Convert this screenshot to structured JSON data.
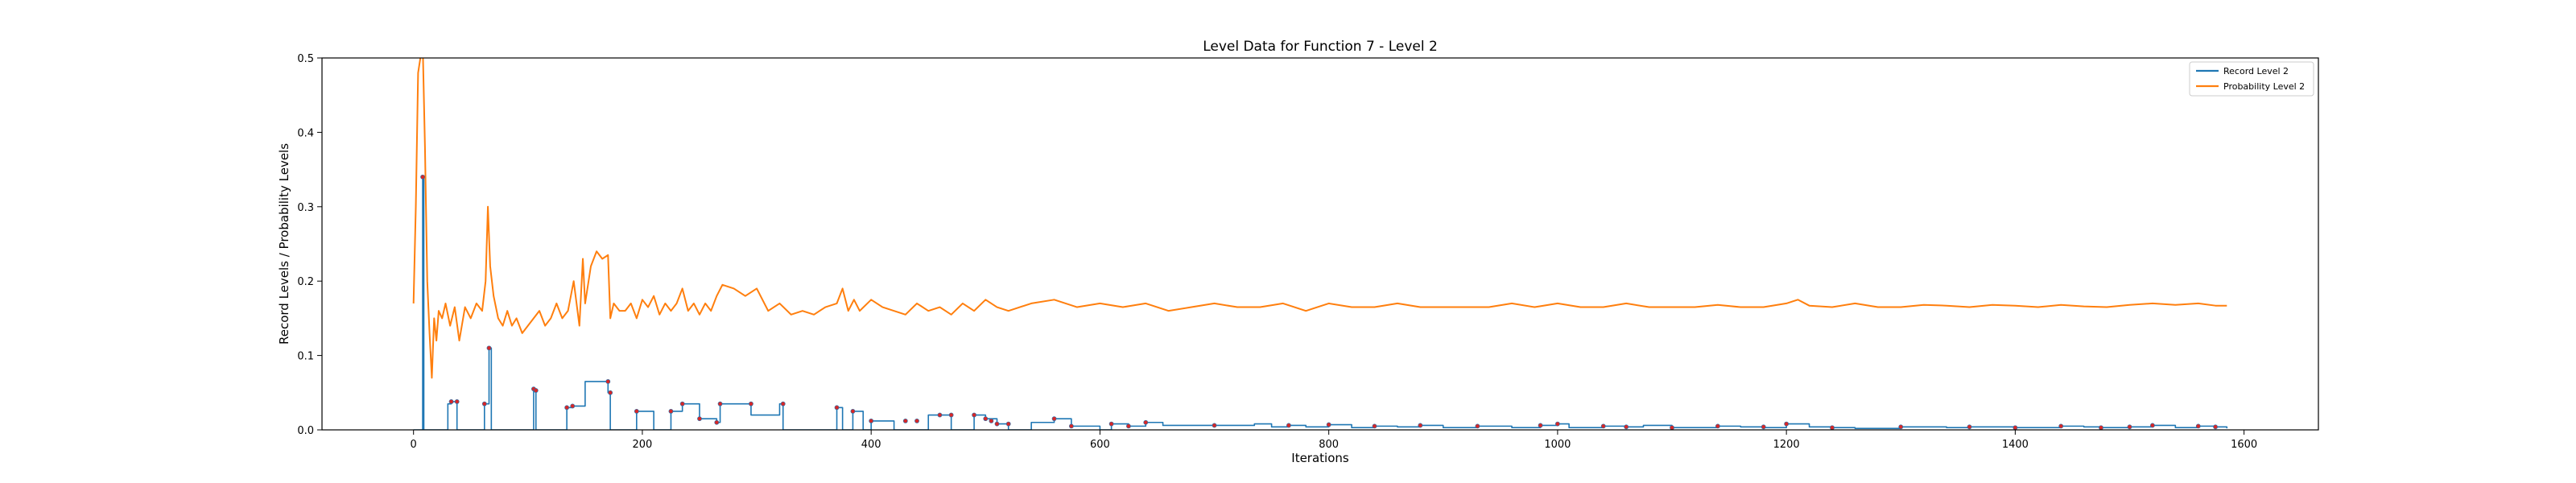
{
  "chart_data": {
    "type": "line",
    "title": "Level Data for Function 7 - Level 2",
    "xlabel": "Iterations",
    "ylabel": "Record Levels / Probability Levels",
    "xlim": [
      -80,
      1665
    ],
    "ylim": [
      0,
      0.5
    ],
    "xticks": [
      0,
      200,
      400,
      600,
      800,
      1000,
      1200,
      1400,
      1600
    ],
    "yticks": [
      0.0,
      0.1,
      0.2,
      0.3,
      0.4,
      0.5
    ],
    "xtick_labels": [
      "0",
      "200",
      "400",
      "600",
      "800",
      "1000",
      "1200",
      "1400",
      "1600"
    ],
    "ytick_labels": [
      "0.0",
      "0.1",
      "0.2",
      "0.3",
      "0.4",
      "0.5"
    ],
    "grid": false,
    "legend_position": "top-right",
    "colors": {
      "record": "#1f77b4",
      "probability": "#ff7f0e",
      "markers": "#d62728"
    },
    "series": [
      {
        "name": "Record Level 2",
        "style": "step",
        "x": [
          0,
          8,
          9,
          30,
          33,
          38,
          62,
          66,
          68,
          105,
          107,
          134,
          139,
          150,
          170,
          172,
          195,
          210,
          225,
          235,
          250,
          265,
          268,
          290,
          295,
          320,
          323,
          370,
          375,
          384,
          393,
          400,
          420,
          450,
          470,
          490,
          500,
          510,
          520,
          540,
          560,
          575,
          600,
          610,
          625,
          640,
          655,
          700,
          735,
          750,
          765,
          780,
          800,
          820,
          840,
          860,
          880,
          900,
          930,
          960,
          985,
          1000,
          1010,
          1040,
          1060,
          1075,
          1100,
          1140,
          1160,
          1180,
          1200,
          1220,
          1240,
          1260,
          1300,
          1340,
          1360,
          1400,
          1440,
          1460,
          1475,
          1500,
          1520,
          1540,
          1560,
          1575,
          1585
        ],
        "values": [
          0.0,
          0.34,
          0.0,
          0.035,
          0.038,
          0.0,
          0.035,
          0.11,
          0.0,
          0.055,
          0.0,
          0.03,
          0.032,
          0.065,
          0.05,
          0.0,
          0.025,
          0.0,
          0.025,
          0.035,
          0.015,
          0.01,
          0.035,
          0.035,
          0.02,
          0.035,
          0.0,
          0.03,
          0.0,
          0.025,
          0.0,
          0.012,
          0.0,
          0.02,
          0.0,
          0.02,
          0.015,
          0.008,
          0.0,
          0.01,
          0.015,
          0.005,
          0.0,
          0.008,
          0.005,
          0.01,
          0.006,
          0.006,
          0.008,
          0.004,
          0.006,
          0.004,
          0.007,
          0.003,
          0.005,
          0.004,
          0.006,
          0.003,
          0.005,
          0.003,
          0.006,
          0.008,
          0.003,
          0.005,
          0.004,
          0.006,
          0.003,
          0.005,
          0.004,
          0.003,
          0.008,
          0.004,
          0.003,
          0.002,
          0.004,
          0.003,
          0.004,
          0.003,
          0.005,
          0.004,
          0.003,
          0.004,
          0.006,
          0.003,
          0.005,
          0.004,
          0.002
        ]
      },
      {
        "name": "Probability Level 2",
        "style": "line",
        "x": [
          0,
          2,
          4,
          6,
          8,
          10,
          12,
          14,
          16,
          18,
          20,
          22,
          25,
          28,
          32,
          36,
          40,
          45,
          50,
          55,
          60,
          63,
          65,
          67,
          70,
          74,
          78,
          82,
          86,
          90,
          95,
          100,
          105,
          110,
          115,
          120,
          125,
          130,
          135,
          140,
          145,
          148,
          150,
          155,
          160,
          165,
          170,
          172,
          175,
          180,
          185,
          190,
          195,
          200,
          205,
          210,
          215,
          220,
          225,
          230,
          235,
          240,
          245,
          250,
          255,
          260,
          265,
          270,
          280,
          290,
          300,
          310,
          320,
          330,
          340,
          350,
          360,
          370,
          375,
          380,
          385,
          390,
          400,
          410,
          420,
          430,
          440,
          450,
          460,
          470,
          480,
          490,
          500,
          510,
          520,
          540,
          560,
          580,
          600,
          620,
          640,
          660,
          680,
          700,
          720,
          740,
          760,
          780,
          800,
          820,
          840,
          860,
          880,
          900,
          920,
          940,
          960,
          980,
          1000,
          1020,
          1040,
          1060,
          1080,
          1100,
          1120,
          1140,
          1160,
          1180,
          1200,
          1210,
          1220,
          1240,
          1260,
          1280,
          1300,
          1320,
          1340,
          1360,
          1380,
          1400,
          1420,
          1440,
          1460,
          1480,
          1500,
          1520,
          1540,
          1560,
          1575,
          1585
        ],
        "values": [
          0.17,
          0.3,
          0.48,
          0.5,
          0.52,
          0.38,
          0.2,
          0.13,
          0.07,
          0.15,
          0.12,
          0.16,
          0.15,
          0.17,
          0.14,
          0.165,
          0.12,
          0.165,
          0.15,
          0.17,
          0.16,
          0.2,
          0.3,
          0.22,
          0.18,
          0.15,
          0.14,
          0.16,
          0.14,
          0.15,
          0.13,
          0.14,
          0.15,
          0.16,
          0.14,
          0.15,
          0.17,
          0.15,
          0.16,
          0.2,
          0.14,
          0.23,
          0.17,
          0.22,
          0.24,
          0.23,
          0.235,
          0.15,
          0.17,
          0.16,
          0.16,
          0.17,
          0.15,
          0.175,
          0.165,
          0.18,
          0.155,
          0.17,
          0.16,
          0.17,
          0.19,
          0.16,
          0.17,
          0.155,
          0.17,
          0.16,
          0.18,
          0.195,
          0.19,
          0.18,
          0.19,
          0.16,
          0.17,
          0.155,
          0.16,
          0.155,
          0.165,
          0.17,
          0.19,
          0.16,
          0.175,
          0.16,
          0.175,
          0.165,
          0.16,
          0.155,
          0.17,
          0.16,
          0.165,
          0.155,
          0.17,
          0.16,
          0.175,
          0.165,
          0.16,
          0.17,
          0.175,
          0.165,
          0.17,
          0.165,
          0.17,
          0.16,
          0.165,
          0.17,
          0.165,
          0.165,
          0.17,
          0.16,
          0.17,
          0.165,
          0.165,
          0.17,
          0.165,
          0.165,
          0.165,
          0.165,
          0.17,
          0.165,
          0.17,
          0.165,
          0.165,
          0.17,
          0.165,
          0.165,
          0.165,
          0.168,
          0.165,
          0.165,
          0.17,
          0.175,
          0.167,
          0.165,
          0.17,
          0.165,
          0.165,
          0.168,
          0.167,
          0.165,
          0.168,
          0.167,
          0.165,
          0.168,
          0.166,
          0.165,
          0.168,
          0.17,
          0.168,
          0.17,
          0.167,
          0.167
        ]
      }
    ],
    "record_markers": {
      "x": [
        8,
        33,
        38,
        62,
        66,
        105,
        107,
        134,
        139,
        170,
        172,
        195,
        225,
        235,
        250,
        265,
        268,
        295,
        323,
        370,
        384,
        400,
        430,
        440,
        460,
        470,
        490,
        500,
        505,
        510,
        520,
        560,
        575,
        610,
        625,
        640,
        700,
        765,
        800,
        840,
        880,
        930,
        985,
        1000,
        1040,
        1060,
        1100,
        1140,
        1180,
        1200,
        1240,
        1300,
        1360,
        1400,
        1440,
        1475,
        1500,
        1520,
        1560,
        1575
      ],
      "values": [
        0.34,
        0.038,
        0.038,
        0.035,
        0.11,
        0.055,
        0.053,
        0.03,
        0.032,
        0.065,
        0.05,
        0.025,
        0.025,
        0.035,
        0.015,
        0.01,
        0.035,
        0.035,
        0.035,
        0.03,
        0.025,
        0.012,
        0.012,
        0.012,
        0.02,
        0.02,
        0.02,
        0.015,
        0.012,
        0.008,
        0.008,
        0.015,
        0.005,
        0.008,
        0.005,
        0.01,
        0.006,
        0.006,
        0.007,
        0.005,
        0.006,
        0.005,
        0.006,
        0.008,
        0.005,
        0.004,
        0.003,
        0.005,
        0.004,
        0.008,
        0.003,
        0.004,
        0.004,
        0.003,
        0.005,
        0.003,
        0.004,
        0.006,
        0.005,
        0.004
      ]
    }
  }
}
